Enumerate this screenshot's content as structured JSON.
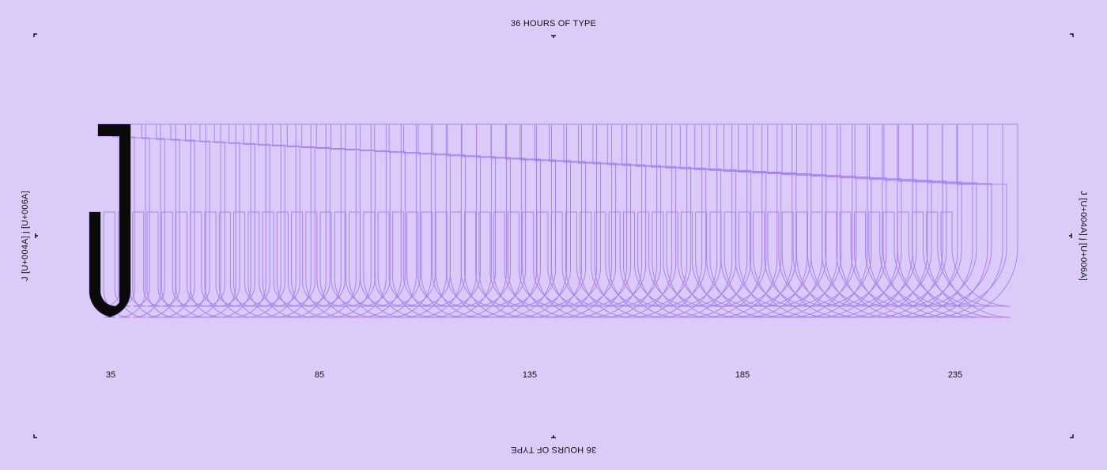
{
  "header": {
    "title": "36 HOURS OF TYPE"
  },
  "footer": {
    "title": "36 HOURS OF TYPE"
  },
  "side": {
    "left_code": "J [U+004A]   j [U+006A]",
    "right_code": "J [U+004A]   j [U+006A]"
  },
  "scale": {
    "ticks": [
      "35",
      "85",
      "135",
      "185",
      "235"
    ]
  },
  "colors": {
    "background": "#dccbf9",
    "outline": "#a983f0",
    "glyph": "#0a0a0a"
  },
  "glyph": {
    "character": "J",
    "copies": 60
  }
}
